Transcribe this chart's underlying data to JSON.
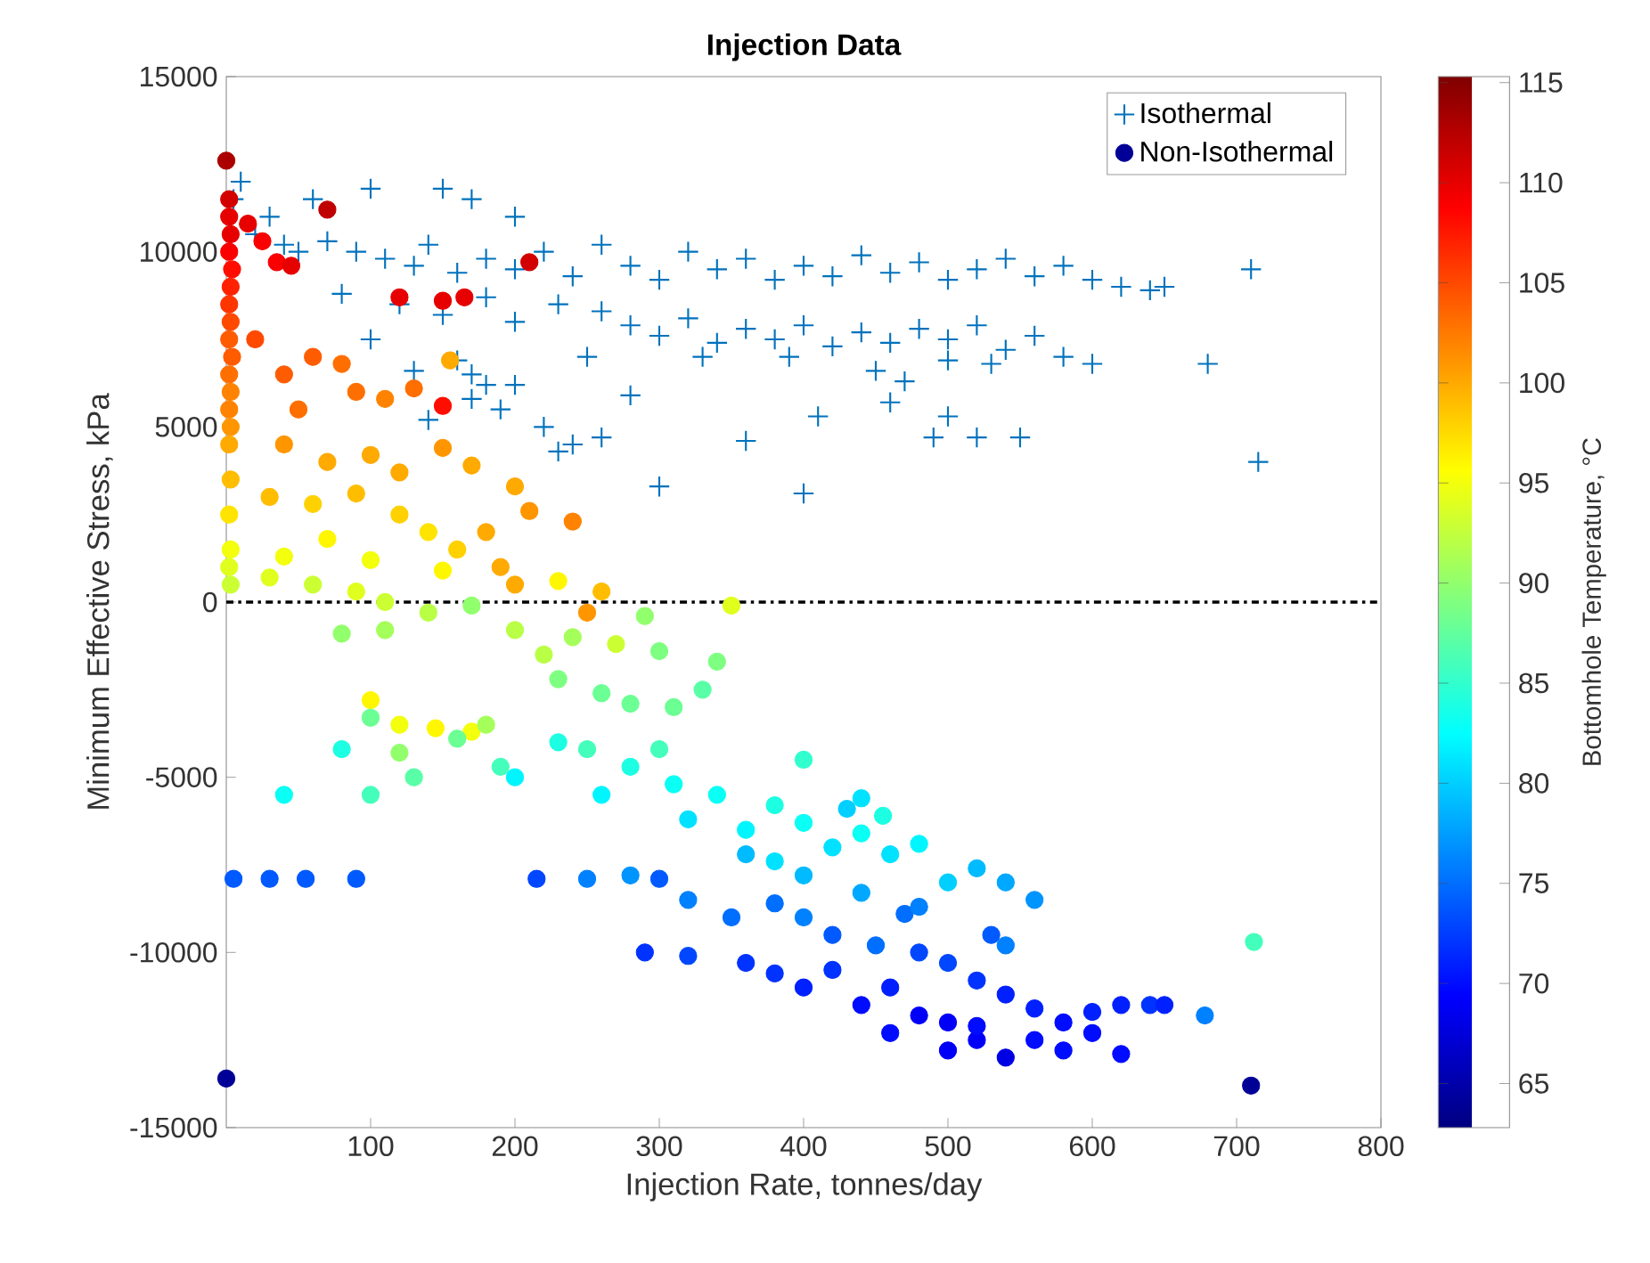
{
  "chart_data": {
    "type": "scatter",
    "title": "Injection Data",
    "xlabel": "Injection Rate, tonnes/day",
    "ylabel": "Minimum Effective Stress, kPa",
    "clabel": "Bottomhole Temperature, °C",
    "xlim": [
      0,
      800
    ],
    "xticks": [
      100,
      200,
      300,
      400,
      500,
      600,
      700,
      800
    ],
    "ylim": [
      -15000,
      15000
    ],
    "yticks": [
      -15000,
      -10000,
      -5000,
      0,
      5000,
      10000,
      15000
    ],
    "clim": [
      62.8,
      115.3
    ],
    "cticks": [
      65,
      70,
      75,
      80,
      85,
      90,
      95,
      100,
      105,
      110,
      115
    ],
    "legend": "top right",
    "grid": false,
    "ref_lines": [
      {
        "axis": "y",
        "value": 0,
        "color": "#000000",
        "line_style": "dashdot"
      }
    ],
    "series": [
      {
        "name": "Isothermal",
        "color": "#0072bd",
        "marker": "cross",
        "x": [
          5,
          10,
          30,
          60,
          100,
          150,
          170,
          200,
          20,
          40,
          50,
          70,
          90,
          110,
          130,
          140,
          160,
          180,
          200,
          220,
          240,
          260,
          280,
          300,
          320,
          340,
          360,
          380,
          400,
          420,
          440,
          460,
          480,
          500,
          520,
          540,
          560,
          580,
          600,
          620,
          640,
          650,
          710,
          80,
          120,
          150,
          180,
          200,
          230,
          260,
          280,
          300,
          320,
          340,
          360,
          380,
          400,
          420,
          440,
          460,
          480,
          500,
          520,
          540,
          560,
          580,
          600,
          390,
          450,
          500,
          530,
          100,
          160,
          170,
          180,
          170,
          130,
          190,
          220,
          230,
          240,
          260,
          280,
          300,
          360,
          400,
          410,
          460,
          490,
          500,
          520,
          550,
          680,
          715,
          140,
          200,
          250,
          330,
          470
        ],
        "values": [
          11500,
          12000,
          11000,
          11500,
          11800,
          11800,
          11500,
          11000,
          10500,
          10200,
          10000,
          10300,
          10000,
          9800,
          9600,
          10200,
          9400,
          9800,
          9500,
          10000,
          9300,
          10200,
          9600,
          9200,
          10000,
          9500,
          9800,
          9200,
          9600,
          9300,
          9900,
          9400,
          9700,
          9200,
          9500,
          9800,
          9300,
          9600,
          9200,
          9000,
          8900,
          9000,
          9500,
          8800,
          8500,
          8200,
          8700,
          8000,
          8500,
          8300,
          7900,
          7600,
          8100,
          7400,
          7800,
          7500,
          7900,
          7300,
          7700,
          7400,
          7800,
          7500,
          7900,
          7200,
          7600,
          7000,
          6800,
          7000,
          6600,
          6900,
          6800,
          7500,
          6900,
          6500,
          6200,
          5800,
          6600,
          5500,
          5000,
          4300,
          4500,
          4700,
          5900,
          3300,
          4600,
          3100,
          5300,
          5700,
          4700,
          5300,
          4700,
          4700,
          6800,
          4000,
          5200,
          6200,
          7000,
          7000,
          6300
        ]
      },
      {
        "name": "Non-Isothermal",
        "marker": "circle",
        "x": [
          0,
          2,
          2,
          3,
          2,
          4,
          3,
          2,
          3,
          2,
          4,
          2,
          3,
          2,
          3,
          2,
          3,
          2,
          3,
          2,
          3,
          5,
          0,
          15,
          25,
          35,
          70,
          45,
          120,
          150,
          165,
          210,
          150,
          155,
          20,
          40,
          60,
          80,
          50,
          90,
          110,
          130,
          40,
          70,
          100,
          120,
          150,
          170,
          200,
          210,
          240,
          180,
          30,
          60,
          90,
          120,
          140,
          160,
          190,
          200,
          230,
          250,
          260,
          150,
          100,
          70,
          40,
          30,
          60,
          90,
          110,
          140,
          170,
          80,
          110,
          200,
          220,
          240,
          270,
          290,
          300,
          230,
          260,
          280,
          310,
          330,
          340,
          350,
          145,
          170,
          120,
          100,
          100,
          100,
          130,
          120,
          160,
          180,
          190,
          200,
          230,
          250,
          260,
          280,
          300,
          310,
          320,
          340,
          360,
          380,
          400,
          420,
          440,
          460,
          480,
          500,
          520,
          540,
          560,
          400,
          440,
          455,
          430,
          80,
          40,
          30,
          55,
          90,
          215,
          250,
          280,
          300,
          320,
          350,
          380,
          400,
          290,
          320,
          360,
          380,
          400,
          420,
          440,
          460,
          480,
          500,
          520,
          540,
          560,
          580,
          600,
          620,
          640,
          460,
          500,
          520,
          580,
          620,
          650,
          678,
          712,
          710,
          480,
          520,
          540,
          560,
          600,
          420,
          450,
          500,
          470,
          530,
          360,
          380,
          400,
          440,
          480,
          540
        ],
        "values": [
          12600,
          11500,
          11000,
          10500,
          10000,
          9500,
          9000,
          8500,
          8000,
          7500,
          7000,
          6500,
          6000,
          5500,
          5000,
          4500,
          3500,
          2500,
          1500,
          1000,
          500,
          -7900,
          -13600,
          10800,
          10300,
          9700,
          11200,
          9600,
          8700,
          8600,
          8700,
          9700,
          5600,
          6900,
          7500,
          6500,
          7000,
          6800,
          5500,
          6000,
          5800,
          6100,
          4500,
          4000,
          4200,
          3700,
          4400,
          3900,
          3300,
          2600,
          2300,
          2000,
          3000,
          2800,
          3100,
          2500,
          2000,
          1500,
          1000,
          500,
          600,
          -300,
          300,
          900,
          1200,
          1800,
          1300,
          700,
          500,
          300,
          0,
          -300,
          -100,
          -900,
          -800,
          -800,
          -1500,
          -1000,
          -1200,
          -400,
          -1400,
          -2200,
          -2600,
          -2900,
          -3000,
          -2500,
          -1700,
          -100,
          -3600,
          -3700,
          -3500,
          -2800,
          -3300,
          -5500,
          -5000,
          -4300,
          -3900,
          -3500,
          -4700,
          -5000,
          -4000,
          -4200,
          -5500,
          -4700,
          -4200,
          -5200,
          -6200,
          -5500,
          -6500,
          -5800,
          -6300,
          -7000,
          -6600,
          -7200,
          -6900,
          -8000,
          -7600,
          -8000,
          -8500,
          -4500,
          -5600,
          -6100,
          -5900,
          -4200,
          -5500,
          -7900,
          -7900,
          -7900,
          -7900,
          -7900,
          -7800,
          -7900,
          -8500,
          -9000,
          -8600,
          -9000,
          -10000,
          -10100,
          -10300,
          -10600,
          -11000,
          -10500,
          -11500,
          -11000,
          -11800,
          -12000,
          -12500,
          -13000,
          -12500,
          -12000,
          -11700,
          -11500,
          -11500,
          -12300,
          -12800,
          -12100,
          -12800,
          -12900,
          -11500,
          -11800,
          -9700,
          -13800,
          -10000,
          -10800,
          -11200,
          -11600,
          -12300,
          -9500,
          -9800,
          -10300,
          -8900,
          -9500,
          -7200,
          -7400,
          -7800,
          -8300,
          -8700,
          -9800
        ],
        "colors": [
          "#ac0000",
          "#d30000",
          "#e60000",
          "#e60000",
          "#fa0000",
          "#ff0e00",
          "#ff2200",
          "#ff3500",
          "#ff4900",
          "#ff5c00",
          "#ff5c00",
          "#ff6f00",
          "#ff8300",
          "#ff8300",
          "#ff9600",
          "#ffaa00",
          "#ffbd00",
          "#ffe400",
          "#f3ff0c",
          "#e0ff1f",
          "#ccff33",
          "#005aff",
          "#000097",
          "#e60000",
          "#fa0000",
          "#fa0000",
          "#c00000",
          "#e60000",
          "#e60000",
          "#e60000",
          "#e60000",
          "#d30000",
          "#ff0e00",
          "#ffaa00",
          "#ff4900",
          "#ff5c00",
          "#ff5c00",
          "#ff6f00",
          "#ff6f00",
          "#ff6f00",
          "#ff8300",
          "#ff6f00",
          "#ff9600",
          "#ffaa00",
          "#ffaa00",
          "#ffaa00",
          "#ff9600",
          "#ffaa00",
          "#ffaa00",
          "#ff9600",
          "#ff8300",
          "#ffaa00",
          "#ffbd00",
          "#ffd100",
          "#ffbd00",
          "#ffd100",
          "#ffe400",
          "#ffd100",
          "#ffaa00",
          "#ffaa00",
          "#fff700",
          "#ff9600",
          "#ffbd00",
          "#fff700",
          "#f3ff0c",
          "#fff700",
          "#f3ff0c",
          "#e0ff1f",
          "#ccff33",
          "#e0ff1f",
          "#ccff33",
          "#b9ff46",
          "#92ff6d",
          "#92ff6d",
          "#a5ff5a",
          "#b9ff46",
          "#b9ff46",
          "#a5ff5a",
          "#ccff33",
          "#92ff6d",
          "#7eff81",
          "#7eff81",
          "#6bff94",
          "#6bff94",
          "#6bff94",
          "#58ffa7",
          "#7eff81",
          "#e0ff1f",
          "#fff700",
          "#f3ff0c",
          "#f3ff0c",
          "#fff700",
          "#6bff94",
          "#44ffbb",
          "#58ffa7",
          "#92ff6d",
          "#6bff94",
          "#a5ff5a",
          "#44ffbb",
          "#00f6ff",
          "#1dffe2",
          "#44ffbb",
          "#00f6ff",
          "#1dffe2",
          "#44ffbb",
          "#0afff5",
          "#00e2ff",
          "#0afff5",
          "#00f6ff",
          "#1dffe2",
          "#0afff5",
          "#00e2ff",
          "#0afff5",
          "#00e2ff",
          "#00f6ff",
          "#00cfff",
          "#00bbff",
          "#00a8ff",
          "#0094ff",
          "#31ffce",
          "#00e2ff",
          "#1dffe2",
          "#00cfff",
          "#1dffe2",
          "#0afff5",
          "#005aff",
          "#005aff",
          "#005aff",
          "#0047ff",
          "#0081ff",
          "#0094ff",
          "#005aff",
          "#0081ff",
          "#006eff",
          "#006eff",
          "#0081ff",
          "#0033ff",
          "#0047ff",
          "#0033ff",
          "#0033ff",
          "#0020ff",
          "#0033ff",
          "#000cff",
          "#0020ff",
          "#0000f8",
          "#0000f8",
          "#0000f8",
          "#0000e4",
          "#000cff",
          "#000cff",
          "#0020ff",
          "#0020ff",
          "#0033ff",
          "#000cff",
          "#0000f8",
          "#000cff",
          "#000cff",
          "#000cff",
          "#0020ff",
          "#0081ff",
          "#44ffbb",
          "#000097",
          "#0047ff",
          "#0033ff",
          "#0020ff",
          "#0020ff",
          "#000cff",
          "#005aff",
          "#006eff",
          "#0047ff",
          "#006eff",
          "#005aff",
          "#00bbff",
          "#00e2ff",
          "#00bbff",
          "#00a8ff",
          "#0081ff",
          "#0081ff"
        ]
      }
    ]
  }
}
